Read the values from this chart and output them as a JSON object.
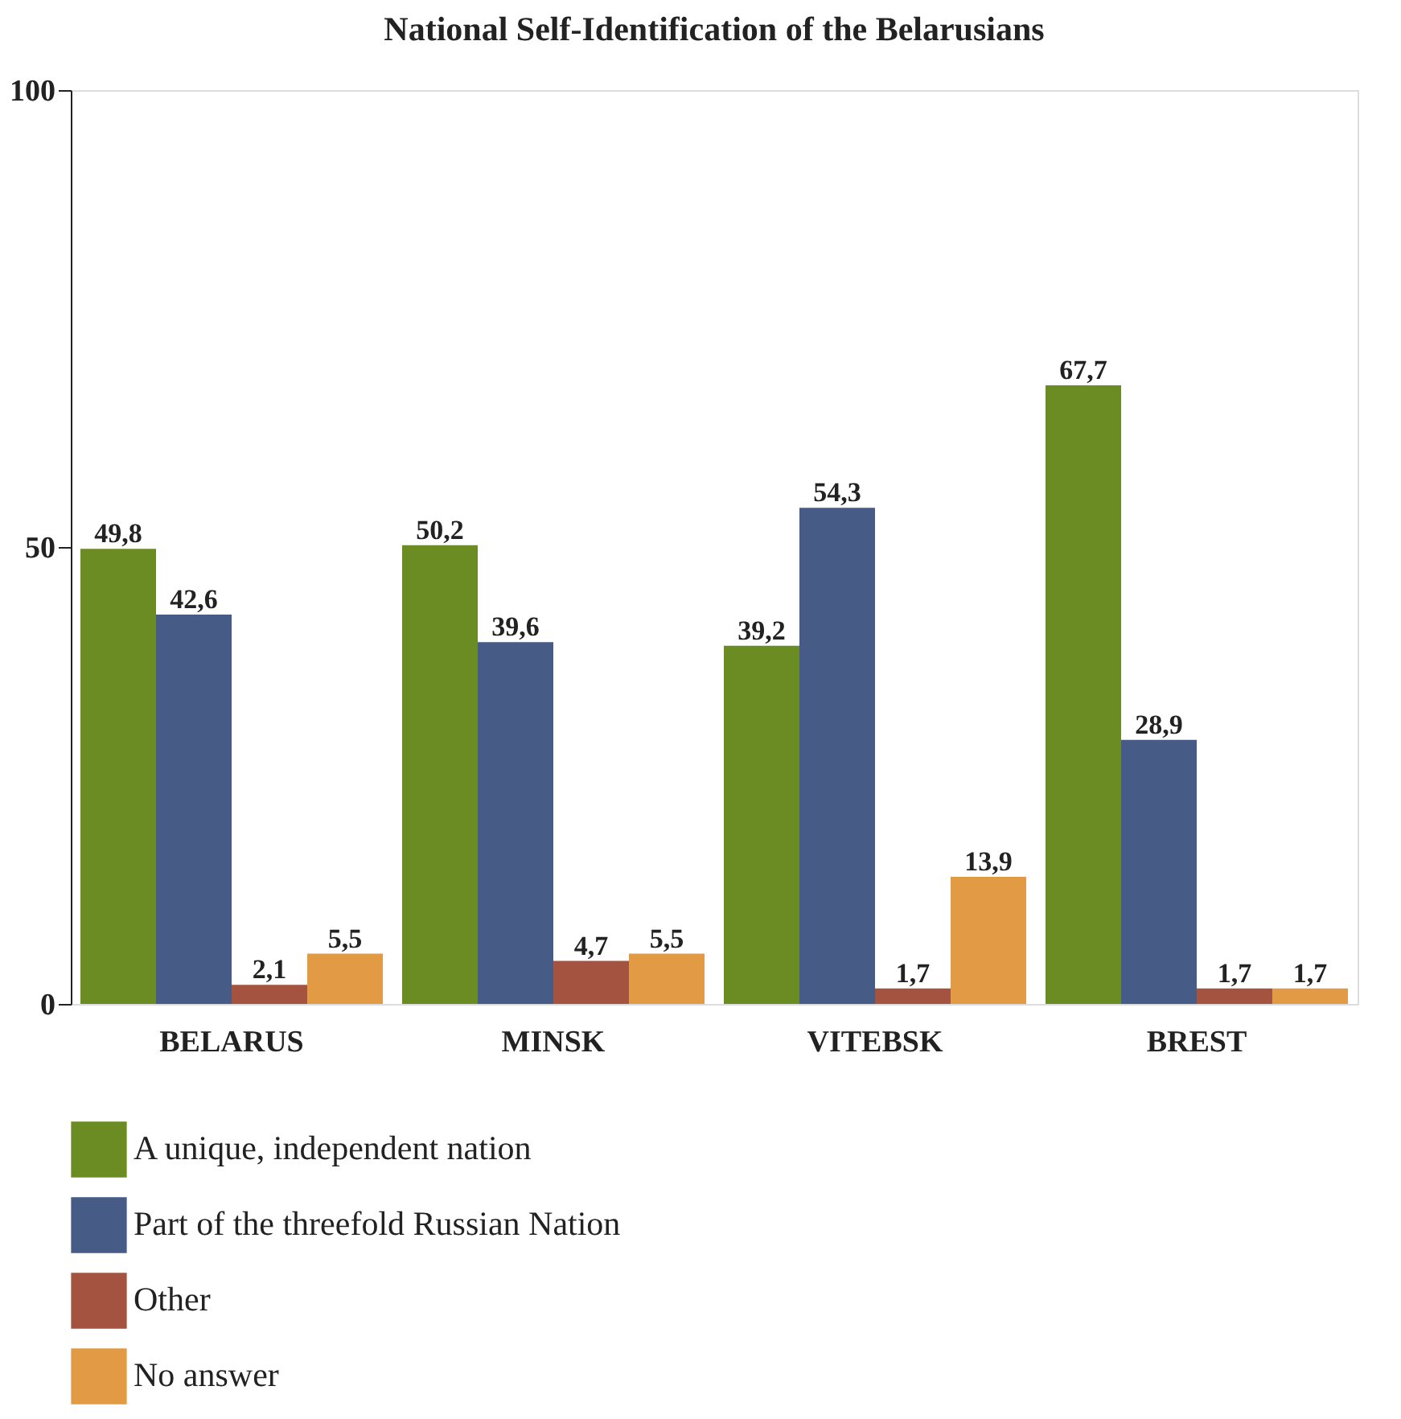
{
  "chart_data": {
    "type": "bar",
    "title": "National Self-Identification of the Belarusians",
    "categories": [
      "BELARUS",
      "MINSK",
      "VITEBSK",
      "BREST"
    ],
    "series": [
      {
        "name": "A unique, independent nation",
        "color": "#6b8c23",
        "values": [
          49.8,
          50.2,
          39.2,
          67.7
        ],
        "value_labels": [
          "49,8",
          "50,2",
          "39,2",
          "67,7"
        ]
      },
      {
        "name": "Part of the threefold Russian Nation",
        "color": "#465c87",
        "values": [
          42.6,
          39.6,
          54.3,
          28.9
        ],
        "value_labels": [
          "42,6",
          "39,6",
          "54,3",
          "28,9"
        ]
      },
      {
        "name": "Other",
        "color": "#a3533f",
        "values": [
          2.1,
          4.7,
          1.7,
          1.7
        ],
        "value_labels": [
          "2,1",
          "4,7",
          "1,7",
          "1,7"
        ]
      },
      {
        "name": "No answer",
        "color": "#e39a45",
        "values": [
          5.5,
          5.5,
          13.9,
          1.7
        ],
        "value_labels": [
          "5,5",
          "5,5",
          "13,9",
          "1,7"
        ]
      }
    ],
    "ylim": [
      0,
      100
    ],
    "yticks": [
      0,
      50,
      100
    ],
    "grid": false,
    "legend": "bottom"
  }
}
